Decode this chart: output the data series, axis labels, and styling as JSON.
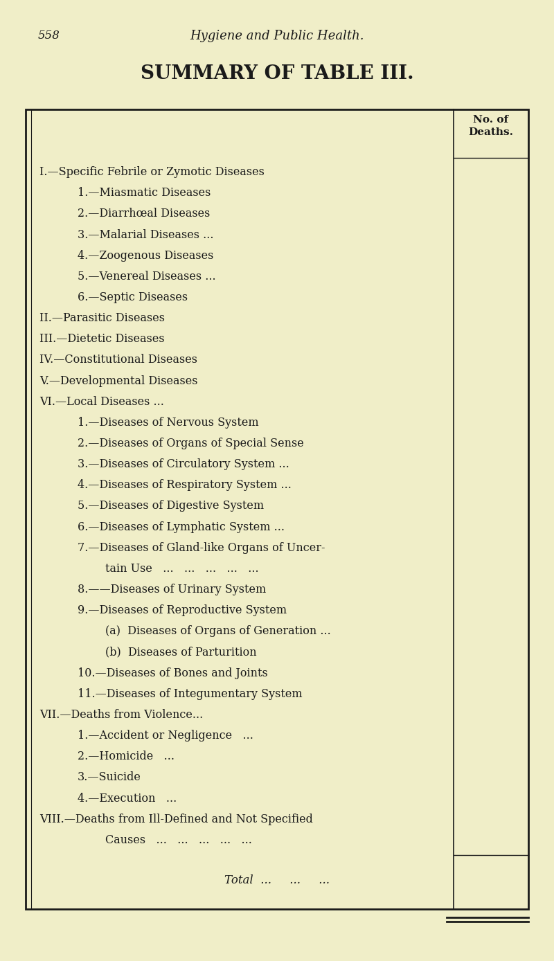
{
  "page_num": "558",
  "header": "Hygiene and Public Health.",
  "title": "SUMMARY OF TABLE III.",
  "col_header_line1": "No. of",
  "col_header_line2": "Deaths.",
  "bg_color": "#f0eec8",
  "text_color": "#1a1a1a",
  "rows": [
    {
      "text": "I.—Specific Febrile or Zymotic Diseases",
      "dots": "...",
      "indent": 0
    },
    {
      "text": "1.—Miasmatic Diseases",
      "dots": "...   ...   ...",
      "indent": 1
    },
    {
      "text": "2.—Diarrhœal Diseases",
      "dots": "..   ...   ...",
      "indent": 1
    },
    {
      "text": "3.—Malarial Diseases ...",
      "dots": "...   ...   ...",
      "indent": 1
    },
    {
      "text": "4.—Zoogenous Diseases",
      "dots": "...   ...   ...",
      "indent": 1
    },
    {
      "text": "5.—Venereal Diseases ...",
      "dots": "...   ...   ...",
      "indent": 1
    },
    {
      "text": "6.—Septic Diseases",
      "dots": "...   ...   ...",
      "indent": 1
    },
    {
      "text": "II.—Parasitic Diseases",
      "dots": "...   ...   ...   ...",
      "indent": 0
    },
    {
      "text": "III.—Dietetic Diseases",
      "dots": "...   ...   ...   ...",
      "indent": 0
    },
    {
      "text": "IV.—Constitutional Diseases",
      "dots": "...   ...   ...",
      "indent": 0
    },
    {
      "text": "V.—Developmental Diseases",
      "dots": "...   ...   ...",
      "indent": 0
    },
    {
      "text": "VI.—Local Diseases ...",
      "dots": "...   ...   ...   ...",
      "indent": 0
    },
    {
      "text": "1.—Diseases of Nervous System",
      "dots": "...   ...",
      "indent": 1
    },
    {
      "text": "2.—Diseases of Organs of Special Sense",
      "dots": "...",
      "indent": 1
    },
    {
      "text": "3.—Diseases of Circulatory System ...",
      "dots": "...",
      "indent": 1
    },
    {
      "text": "4.—Diseases of Respiratory System ...",
      "dots": "...",
      "indent": 1
    },
    {
      "text": "5.—Diseases of Digestive System",
      "dots": "...   ...",
      "indent": 1
    },
    {
      "text": "6.—Diseases of Lymphatic System ...",
      "dots": "...",
      "indent": 1
    },
    {
      "text": "7.—Diseases of Gland-like Organs of Uncer-",
      "dots": "",
      "indent": 1
    },
    {
      "text": "tain Use   ...   ...   ...   ...   ...",
      "dots": "",
      "indent": 2
    },
    {
      "text": "8.——Diseases of Urinary System",
      "dots": "...   ...",
      "indent": 1
    },
    {
      "text": "9.—Diseases of Reproductive System",
      "dots": "...",
      "indent": 1
    },
    {
      "text": "(a)  Diseases of Organs of Generation ...",
      "dots": "",
      "indent": 2
    },
    {
      "text": "(b)  Diseases of Parturition",
      "dots": "...   ...",
      "indent": 2
    },
    {
      "text": "10.—Diseases of Bones and Joints",
      "dots": "...   ...",
      "indent": 1
    },
    {
      "text": "11.—Diseases of Integumentary System",
      "dots": "...",
      "indent": 1
    },
    {
      "text": "VII.—Deaths from Violence...",
      "dots": "...   ...   ...",
      "indent": 0
    },
    {
      "text": "1.—Accident or Negligence   ...",
      "dots": "...   ...",
      "indent": 1
    },
    {
      "text": "2.—Homicide   ...",
      "dots": "...   ...   ...   ...",
      "indent": 1
    },
    {
      "text": "3.—Suicide",
      "dots": "...   ...   ...   ...   ...",
      "indent": 1
    },
    {
      "text": "4.—Execution   ...",
      "dots": "...   ...   ...   ...",
      "indent": 1
    },
    {
      "text": "VIII.—Deaths from Ill-Defined and Not Specified",
      "dots": "",
      "indent": 0
    },
    {
      "text": "Causes   ...   ...   ...   ...   ...",
      "dots": "",
      "indent": 2
    }
  ],
  "total_text": "Total  ...     ...     ...",
  "body_fontsize": 11.5,
  "header_fontsize": 13,
  "title_fontsize": 20,
  "col_fontsize": 11
}
